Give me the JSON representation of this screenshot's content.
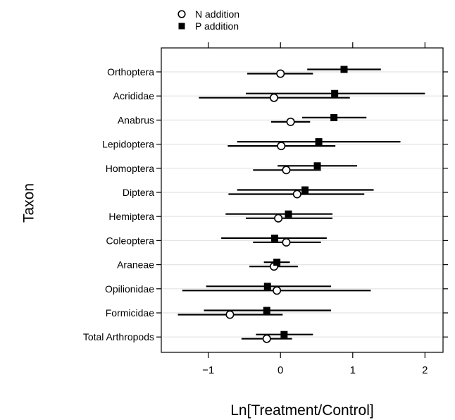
{
  "chart_data": {
    "type": "scatter",
    "subtype": "dot-plot-with-error-bars",
    "xlabel": "Ln[Treatment/Control]",
    "ylabel": "Taxon",
    "xlim": [
      -1.65,
      2.25
    ],
    "xticks": [
      -1,
      0,
      1,
      2
    ],
    "xtick_labels": [
      "−1",
      "0",
      "1",
      "2"
    ],
    "grid": "horizontal",
    "legend": {
      "position": "top-left",
      "entries": [
        {
          "label": "N addition",
          "marker": "open-circle"
        },
        {
          "label": "P addition",
          "marker": "filled-square"
        }
      ]
    },
    "categories": [
      "Orthoptera",
      "Acrididae",
      "Anabrus",
      "Lepidoptera",
      "Homoptera",
      "Diptera",
      "Hemiptera",
      "Coleoptera",
      "Araneae",
      "Opilionidae",
      "Formicidae",
      "Total Arthropods"
    ],
    "series": [
      {
        "name": "N addition",
        "marker": "open-circle",
        "values": [
          0.0,
          -0.09,
          0.14,
          0.01,
          0.08,
          0.23,
          -0.03,
          0.08,
          -0.09,
          -0.05,
          -0.7,
          -0.19
        ],
        "lower": [
          -0.46,
          -1.13,
          -0.13,
          -0.73,
          -0.38,
          -0.72,
          -0.48,
          -0.38,
          -0.43,
          -1.36,
          -1.42,
          -0.54
        ],
        "upper": [
          0.45,
          0.96,
          0.41,
          0.76,
          0.56,
          1.16,
          0.72,
          0.56,
          0.24,
          1.25,
          0.03,
          0.16
        ]
      },
      {
        "name": "P addition",
        "marker": "filled-square",
        "values": [
          0.88,
          0.75,
          0.74,
          0.53,
          0.51,
          0.34,
          0.11,
          -0.08,
          -0.05,
          -0.18,
          -0.19,
          0.05
        ],
        "lower": [
          0.37,
          -0.48,
          0.3,
          -0.6,
          -0.04,
          -0.6,
          -0.76,
          -0.82,
          -0.23,
          -1.03,
          -1.06,
          -0.34
        ],
        "upper": [
          1.39,
          2.0,
          1.19,
          1.66,
          1.06,
          1.29,
          0.72,
          0.64,
          0.13,
          0.7,
          0.7,
          0.45
        ]
      }
    ]
  }
}
